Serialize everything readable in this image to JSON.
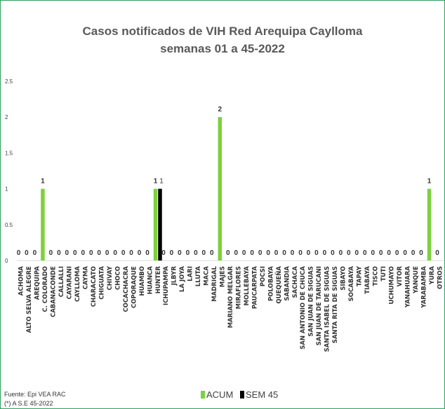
{
  "chart_data": {
    "type": "bar",
    "title": "Casos notificados de VIH Red Arequipa Caylloma",
    "subtitle": "semanas 01 a 45-2022",
    "xlabel": "",
    "ylabel": "",
    "ylim": [
      0,
      2.5
    ],
    "yticks": [
      "0",
      "0.5",
      "1",
      "1.5",
      "2",
      "2.5"
    ],
    "ytick_values": [
      0,
      0.5,
      1,
      1.5,
      2,
      2.5
    ],
    "grid": false,
    "legend_position": "bottom",
    "categories": [
      "ACHOMA",
      "ALTO SELVA ALEGRE",
      "AREQUIPA",
      "C. COLORADO",
      "CABANACONDE",
      "CALLALLI",
      "CAYARANI",
      "CAYLLOMA",
      "CAYMA",
      "CHARACATO",
      "CHIGUATA",
      "CHIVAY",
      "CHOCO",
      "COCACHACRA",
      "COPORAQUE",
      "HUAMBO",
      "HUANCA",
      "HUNTER",
      "ICHUPAMPA",
      "JLBYR",
      "LA JOYA",
      "LARI",
      "LLUTA",
      "MACA",
      "MADRIGAL",
      "MAJES",
      "MARIANO MELGAR",
      "MIRAFLORES",
      "MOLLEBAYA",
      "PAUCARPATA",
      "POCSI",
      "POLOBAYA",
      "QUEQUEÑA",
      "SABANDIA",
      "SACHACA",
      "SAN ANTONIO DE CHUCA",
      "SAN JUAN DE SIGUAS",
      "SAN JUAN DE TARUCANI",
      "SANTA ISABEL DE SIGUAS",
      "SANTA RITA DE SIGUAS",
      "SIBAYO",
      "SOCABAYA",
      "TAPAY",
      "TIABAYA",
      "TISCO",
      "TUTI",
      "UCHUMAYO",
      "VITOR",
      "YANAHUARA",
      "YANQUE",
      "YARABAMBA",
      "YURA",
      "OTROS"
    ],
    "series": [
      {
        "name": "ACUM",
        "color": "#7dd13b",
        "values": [
          0,
          0,
          0,
          1,
          0,
          0,
          0,
          0,
          0,
          0,
          0,
          0,
          0,
          0,
          0,
          0,
          0,
          1,
          0,
          0,
          0,
          0,
          0,
          0,
          0,
          2,
          0,
          0,
          0,
          0,
          0,
          0,
          0,
          0,
          0,
          0,
          0,
          0,
          0,
          0,
          0,
          0,
          0,
          0,
          0,
          0,
          0,
          0,
          0,
          0,
          0,
          1,
          0
        ],
        "labels": [
          "0",
          "0",
          "0",
          "1",
          "0",
          "0",
          "0",
          "0",
          "0",
          "0",
          "0",
          "0",
          "0",
          "0",
          "0",
          "0",
          "0",
          "1",
          "0",
          "0",
          "0",
          "0",
          "0",
          "0",
          "0",
          "2",
          "0",
          "0",
          "0",
          "0",
          "0",
          "0",
          "0",
          "0",
          "0",
          "0",
          "0",
          "0",
          "0",
          "0",
          "0",
          "0",
          "0",
          "0",
          "0",
          "0",
          "0",
          "0",
          "0",
          "0",
          "0",
          "1",
          "0"
        ]
      },
      {
        "name": "SEM 45",
        "color": "#000000",
        "values": [
          0,
          0,
          0,
          0,
          0,
          0,
          0,
          0,
          0,
          0,
          0,
          0,
          0,
          0,
          0,
          0,
          0,
          1,
          0,
          0,
          0,
          0,
          0,
          0,
          0,
          0,
          0,
          0,
          0,
          0,
          0,
          0,
          0,
          0,
          0,
          0,
          0,
          0,
          0,
          0,
          0,
          0,
          0,
          0,
          0,
          0,
          0,
          0,
          0,
          0,
          0,
          0,
          0
        ],
        "labels": [
          "",
          "",
          "",
          "",
          "",
          "",
          "",
          "",
          "",
          "",
          "",
          "",
          "",
          "",
          "",
          "",
          "",
          "1",
          "",
          "",
          "",
          "",
          "",
          "",
          "",
          "",
          "",
          "",
          "",
          "",
          "",
          "",
          "",
          "",
          "",
          "",
          "",
          "",
          "",
          "",
          "",
          "",
          "",
          "",
          "",
          "",
          "",
          "",
          "",
          "",
          "",
          "",
          ""
        ]
      }
    ]
  },
  "source": {
    "line1": "Fuente:  Epi VEA RAC",
    "line2": "(*) A S.E 45-2022"
  }
}
